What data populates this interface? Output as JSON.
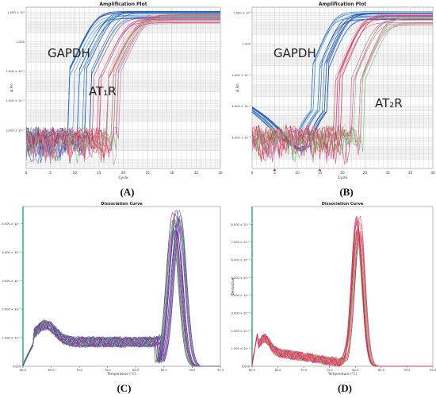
{
  "colors": {
    "axis": "#333333",
    "grid": "#c8c8c8",
    "band": "#e8e8e8",
    "border_green": "#27ae60",
    "gapdh": [
      "#1f5fbf",
      "#2f7fd6",
      "#1b3f9a",
      "#3aa0e0",
      "#0f4aa8"
    ],
    "target_a": [
      "#d14a8b",
      "#c0392b",
      "#e07ab0",
      "#f08080",
      "#b22272",
      "#a0a0a0",
      "#6ab04c"
    ],
    "target_b": [
      "#e0559a",
      "#d04080",
      "#f3a0c0",
      "#c0392b",
      "#5dbb63"
    ],
    "melt_c": [
      "#8e24aa",
      "#6a1b9a",
      "#b04fc0",
      "#2e7d32",
      "#43a047",
      "#7b1fa2",
      "#9c27b0",
      "#26a69a"
    ],
    "melt_d": [
      "#e91e63",
      "#f06292",
      "#c2185b",
      "#8bc34a",
      "#4caf50",
      "#ff8a80",
      "#ec407a"
    ],
    "marker": "#e53935"
  },
  "chart_data": [
    {
      "panel": "A",
      "type": "line",
      "title": "Amplification Plot",
      "xlabel": "Cycle",
      "ylabel": "Δ Rn",
      "yscale": "log",
      "xlim": [
        0,
        40
      ],
      "ylim": [
        5e-05,
        15
      ],
      "xticks": [
        "0",
        "5",
        "10",
        "15",
        "20",
        "25",
        "30",
        "35",
        "40"
      ],
      "yticks": [
        "1.000 × 10¹",
        "1.000",
        "1.000 × 10⁻¹",
        "1.000 × 10⁻²",
        "1.000 × 10⁻³"
      ],
      "annotations": [
        {
          "text": "GAPDH"
        },
        {
          "text": "AT₁R"
        }
      ],
      "caption": "(A)",
      "series": [
        {
          "group": "GAPDH",
          "ct_range": [
            10,
            16
          ],
          "count": 18
        },
        {
          "group": "AT1R",
          "ct_range": [
            15,
            22
          ],
          "count": 20
        }
      ]
    },
    {
      "panel": "B",
      "type": "line",
      "title": "Amplification Plot",
      "xlabel": "Cycle",
      "ylabel": "Δ Rn",
      "yscale": "log",
      "xlim": [
        0,
        40
      ],
      "ylim": [
        0.0001,
        15
      ],
      "xticks": [
        "0",
        "5",
        "10",
        "15",
        "20",
        "25",
        "30",
        "35",
        "40"
      ],
      "yticks": [
        "1.000 × 10¹",
        "1.000",
        "1.000 × 10⁻¹",
        "1.000 × 10⁻²",
        "1.000 × 10⁻³"
      ],
      "annotations": [
        {
          "text": "GAPDH"
        },
        {
          "text": "AT₂R"
        }
      ],
      "caption": "(B)",
      "series": [
        {
          "group": "GAPDH",
          "ct_range": [
            14,
            18
          ],
          "count": 18
        },
        {
          "group": "AT2R",
          "ct_range": [
            19,
            27
          ],
          "count": 20
        }
      ]
    },
    {
      "panel": "C",
      "type": "line",
      "title": "Dissociation Curve",
      "xlabel": "Temperature (°C)",
      "ylabel": "",
      "xlim": [
        60,
        95
      ],
      "ylim": [
        0,
        0.56
      ],
      "xticks": [
        "60.0",
        "65.0",
        "70.0",
        "75.0",
        "80.0",
        "85.0",
        "90.0",
        "95.0"
      ],
      "yticks": [
        "0.000",
        "1.000 × 10⁻¹",
        "2.000 × 10⁻¹",
        "3.000 × 10⁻¹",
        "4.000 × 10⁻¹",
        "5.000 × 10⁻¹"
      ],
      "caption": "(C)",
      "peak_temperature": 87.2,
      "peak_height": 0.54,
      "count": 24
    },
    {
      "panel": "D",
      "type": "line",
      "title": "Dissociation Curve",
      "xlabel": "Temperature (°C)",
      "ylabel": "Derivative",
      "xlim": [
        60,
        95
      ],
      "ylim": [
        0,
        0.9
      ],
      "xticks": [
        "60.0",
        "65.0",
        "70.0",
        "75.0",
        "80.0",
        "85.0",
        "90.0",
        "95.0"
      ],
      "yticks": [
        "0.000",
        "1.000 × 10⁻¹",
        "2.000 × 10⁻¹",
        "3.000 × 10⁻¹",
        "4.000 × 10⁻¹",
        "5.000 × 10⁻¹",
        "6.000 × 10⁻¹",
        "7.000 × 10⁻¹",
        "8.000 × 10⁻¹"
      ],
      "caption": "(D)",
      "peak_temperature": 80.6,
      "peak_height": 0.84,
      "count": 24
    }
  ]
}
